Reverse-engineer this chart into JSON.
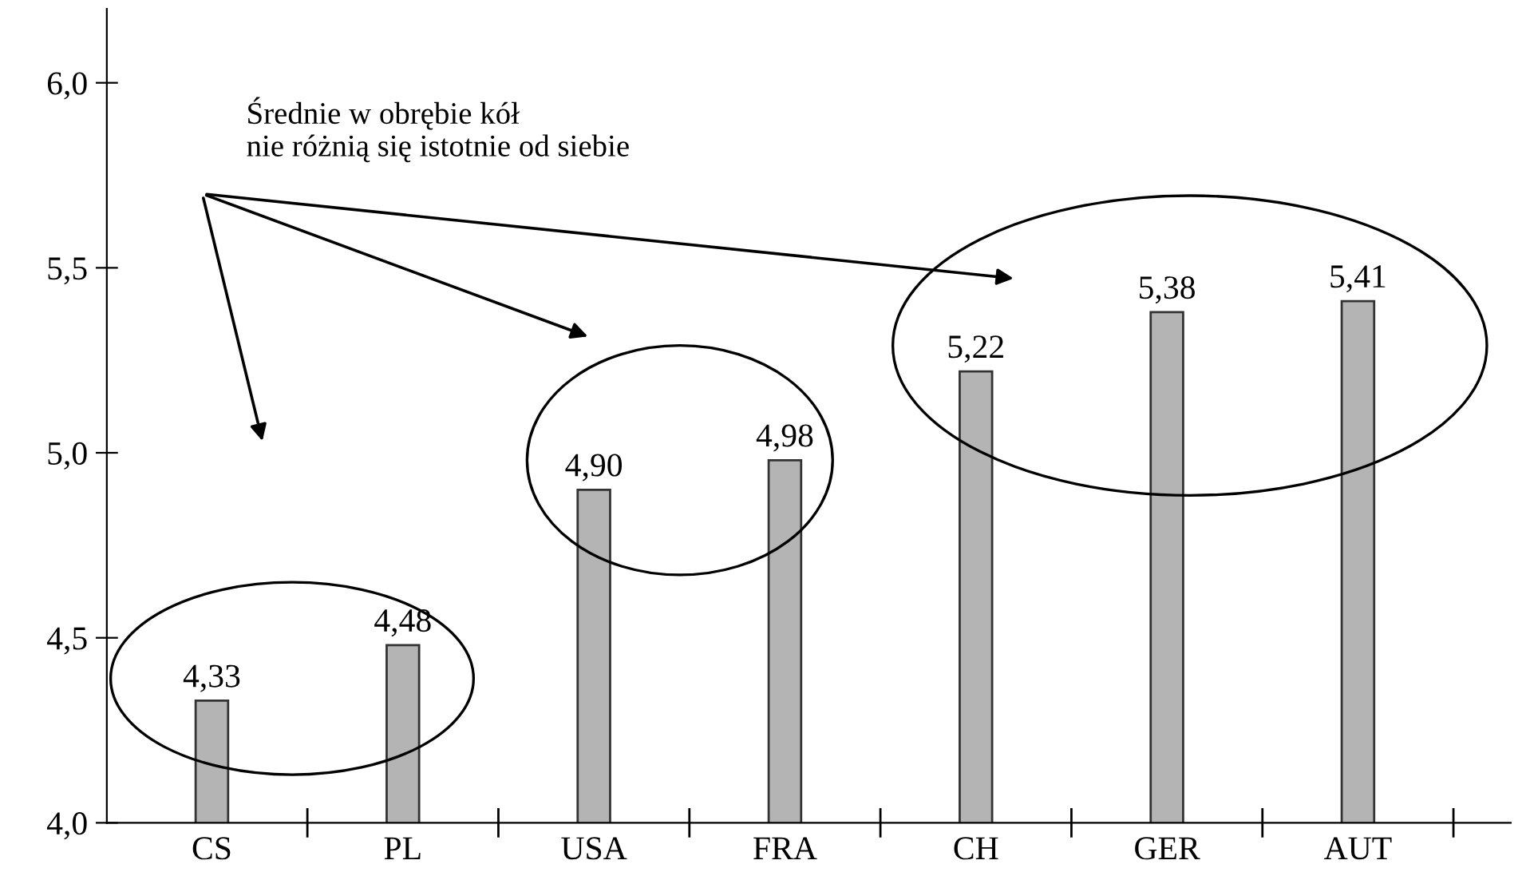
{
  "chart_data": {
    "type": "bar",
    "categories": [
      "CS",
      "PL",
      "USA",
      "FRA",
      "CH",
      "GER",
      "AUT"
    ],
    "values": [
      4.33,
      4.48,
      4.9,
      4.98,
      5.22,
      5.38,
      5.41
    ],
    "value_labels": [
      "4,33",
      "4,48",
      "4,90",
      "4,98",
      "5,22",
      "5,38",
      "5,41"
    ],
    "color": "#b4b4b4",
    "ylim": [
      4.0,
      6.2
    ],
    "yticks": [
      {
        "value": 4.0,
        "label": "4,0"
      },
      {
        "value": 4.5,
        "label": "4,5"
      },
      {
        "value": 5.0,
        "label": "5,0"
      },
      {
        "value": 5.5,
        "label": "5,5"
      },
      {
        "value": 6.0,
        "label": "6,0"
      }
    ],
    "annotations": [
      "Średnie w obrębie kół\nnie różnią się istotnie od siebie"
    ],
    "grid": false
  }
}
